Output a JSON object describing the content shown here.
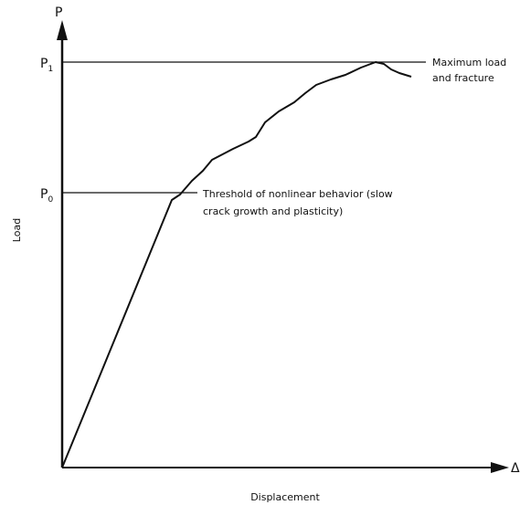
{
  "axes": {
    "y_symbol": "P",
    "x_symbol": "Δ",
    "y_label": "Load",
    "x_label": "Displacement"
  },
  "levels": [
    {
      "symbol": "P",
      "subscript": "1",
      "annotation": [
        "Maximum load",
        "and fracture"
      ]
    },
    {
      "symbol": "P",
      "subscript": "0",
      "annotation": [
        "Threshold of nonlinear behavior (slow",
        "crack growth and plasticity)"
      ]
    }
  ]
}
